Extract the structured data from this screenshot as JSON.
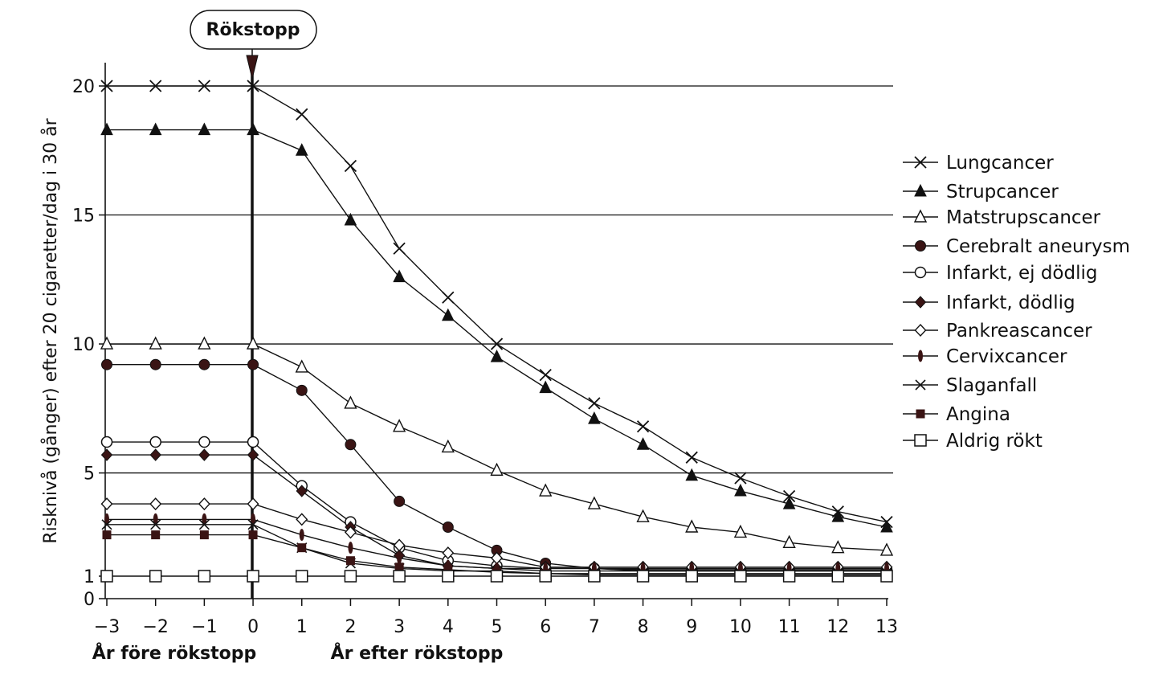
{
  "annotation": {
    "label": "Rökstopp"
  },
  "axes": {
    "ylabel": "Risknivå (gånger) efter 20 cigaretter/dag i 30 år",
    "xlabel_before": "År före rökstopp",
    "xlabel_after": "År efter rökstopp"
  },
  "chart_data": {
    "type": "line",
    "title": "",
    "ylabel": "Risknivå (gånger) efter 20 cigaretter/dag i 30 år",
    "x": [
      -3,
      -2,
      -1,
      0,
      1,
      2,
      3,
      4,
      5,
      6,
      7,
      8,
      9,
      10,
      11,
      12,
      13
    ],
    "x_tick_labels": [
      "−3",
      "−2",
      "−1",
      "0",
      "1",
      "2",
      "3",
      "4",
      "5",
      "6",
      "7",
      "8",
      "9",
      "10",
      "11",
      "12",
      "13"
    ],
    "y_ticks": [
      0,
      1,
      5,
      10,
      15,
      20
    ],
    "gridlines_y": [
      5,
      10,
      15,
      20
    ],
    "ylim": [
      0,
      20
    ],
    "xlim": [
      -3,
      13
    ],
    "event_x": 0,
    "legend_position": "right",
    "series": [
      {
        "name": "Lungcancer",
        "marker": "x",
        "color": "#111111",
        "values": [
          20,
          20,
          20,
          20,
          18.9,
          16.9,
          13.7,
          11.8,
          10,
          8.8,
          7.7,
          6.8,
          5.6,
          4.8,
          4.1,
          3.5,
          3.1
        ]
      },
      {
        "name": "Strupcancer",
        "marker": "triangle-filled",
        "color": "#111111",
        "values": [
          18.3,
          18.3,
          18.3,
          18.3,
          17.5,
          14.8,
          12.6,
          11.1,
          9.5,
          8.3,
          7.1,
          6.1,
          4.9,
          4.3,
          3.8,
          3.3,
          2.9
        ]
      },
      {
        "name": "Matstrupscancer",
        "marker": "triangle-open",
        "color": "#111111",
        "values": [
          10,
          10,
          10,
          10,
          9.1,
          7.7,
          6.8,
          6,
          5.1,
          4.3,
          3.8,
          3.3,
          2.9,
          2.7,
          2.3,
          2.1,
          2
        ]
      },
      {
        "name": "Cerebralt aneurysm",
        "marker": "circle-filled",
        "color": "#3a1414",
        "values": [
          9.2,
          9.2,
          9.2,
          9.2,
          8.2,
          6.1,
          3.9,
          2.9,
          2,
          1.5,
          1.3,
          1.2,
          1.2,
          1.2,
          1.2,
          1.2,
          1.2
        ]
      },
      {
        "name": "Infarkt, ej dödlig",
        "marker": "circle-open",
        "color": "#111111",
        "values": [
          6.2,
          6.2,
          6.2,
          6.2,
          4.5,
          3.1,
          2.1,
          1.6,
          1.4,
          1.3,
          1.3,
          1.25,
          1.25,
          1.25,
          1.25,
          1.25,
          1.25
        ]
      },
      {
        "name": "Infarkt, dödlig",
        "marker": "diamond-filled",
        "color": "#3a1414",
        "values": [
          5.7,
          5.7,
          5.7,
          5.7,
          4.3,
          2.9,
          1.8,
          1.4,
          1.3,
          1.2,
          1.2,
          1.2,
          1.2,
          1.2,
          1.2,
          1.2,
          1.2
        ]
      },
      {
        "name": "Pankreascancer",
        "marker": "diamond-open",
        "color": "#111111",
        "values": [
          3.8,
          3.8,
          3.8,
          3.8,
          3.2,
          2.7,
          2.2,
          1.9,
          1.7,
          1.35,
          1.35,
          1.35,
          1.35,
          1.35,
          1.35,
          1.35,
          1.35
        ]
      },
      {
        "name": "Cervixcancer",
        "marker": "ellipse-filled",
        "color": "#3a1414",
        "values": [
          3.2,
          3.2,
          3.2,
          3.2,
          2.6,
          2.1,
          1.7,
          1.4,
          1.3,
          1.3,
          1.3,
          1.3,
          1.3,
          1.3,
          1.3,
          1.3,
          1.3
        ]
      },
      {
        "name": "Slaganfall",
        "marker": "x-small",
        "color": "#111111",
        "values": [
          3,
          3,
          3,
          3,
          2.1,
          1.5,
          1.3,
          1.2,
          1.2,
          1.1,
          1.1,
          1.1,
          1.1,
          1.1,
          1.1,
          1.1,
          1.1
        ]
      },
      {
        "name": "Angina",
        "marker": "square-filled",
        "color": "#3a1414",
        "values": [
          2.6,
          2.6,
          2.6,
          2.6,
          2.1,
          1.6,
          1.35,
          1.25,
          1.15,
          1.1,
          1.05,
          1.05,
          1.05,
          1.05,
          1.05,
          1.05,
          1.05
        ]
      },
      {
        "name": "Aldrig rökt",
        "marker": "square-open",
        "color": "#111111",
        "values": [
          1,
          1,
          1,
          1,
          1,
          1,
          1,
          1,
          1,
          1,
          1,
          1,
          1,
          1,
          1,
          1,
          1
        ]
      }
    ]
  }
}
